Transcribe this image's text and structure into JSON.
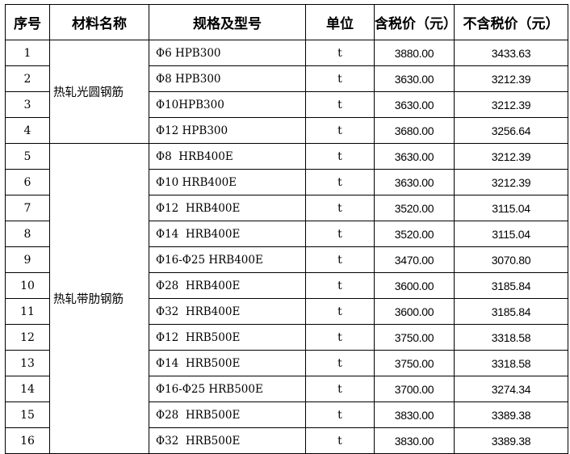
{
  "headers": [
    "序号",
    "材料名称",
    "规格及型号",
    "单位",
    "含税价（元）",
    "不含税价（元）"
  ],
  "groups": [
    {
      "material": "热轧光圆钢筋",
      "rows": [
        {
          "no": "1",
          "spec": "Φ6 HPB300",
          "unit": "t",
          "price_tax": "3880.00",
          "price_notax": "3433.63"
        },
        {
          "no": "2",
          "spec": "Φ8 HPB300",
          "unit": "t",
          "price_tax": "3630.00",
          "price_notax": "3212.39"
        },
        {
          "no": "3",
          "spec": "Φ10HPB300",
          "unit": "t",
          "price_tax": "3630.00",
          "price_notax": "3212.39"
        },
        {
          "no": "4",
          "spec": "Φ12 HPB300",
          "unit": "t",
          "price_tax": "3680.00",
          "price_notax": "3256.64"
        }
      ]
    },
    {
      "material": "热轧带肋钢筋",
      "rows": [
        {
          "no": "5",
          "spec": "Φ8  HRB400E",
          "unit": "t",
          "price_tax": "3630.00",
          "price_notax": "3212.39"
        },
        {
          "no": "6",
          "spec": "Φ10 HRB400E",
          "unit": "t",
          "price_tax": "3630.00",
          "price_notax": "3212.39"
        },
        {
          "no": "7",
          "spec": "Φ12  HRB400E",
          "unit": "t",
          "price_tax": "3520.00",
          "price_notax": "3115.04"
        },
        {
          "no": "8",
          "spec": "Φ14  HRB400E",
          "unit": "t",
          "price_tax": "3520.00",
          "price_notax": "3115.04"
        },
        {
          "no": "9",
          "spec": "Φ16-Φ25 HRB400E",
          "unit": "t",
          "price_tax": "3470.00",
          "price_notax": "3070.80"
        },
        {
          "no": "10",
          "spec": "Φ28  HRB400E",
          "unit": "t",
          "price_tax": "3600.00",
          "price_notax": "3185.84"
        },
        {
          "no": "11",
          "spec": "Φ32  HRB400E",
          "unit": "t",
          "price_tax": "3600.00",
          "price_notax": "3185.84"
        },
        {
          "no": "12",
          "spec": "Φ12  HRB500E",
          "unit": "t",
          "price_tax": "3750.00",
          "price_notax": "3318.58"
        },
        {
          "no": "13",
          "spec": "Φ14  HRB500E",
          "unit": "t",
          "price_tax": "3750.00",
          "price_notax": "3318.58"
        },
        {
          "no": "14",
          "spec": "Φ16-Φ25 HRB500E",
          "unit": "t",
          "price_tax": "3700.00",
          "price_notax": "3274.34"
        },
        {
          "no": "15",
          "spec": "Φ28  HRB500E",
          "unit": "t",
          "price_tax": "3830.00",
          "price_notax": "3389.38"
        },
        {
          "no": "16",
          "spec": "Φ32  HRB500E",
          "unit": "t",
          "price_tax": "3830.00",
          "price_notax": "3389.38"
        }
      ]
    }
  ]
}
